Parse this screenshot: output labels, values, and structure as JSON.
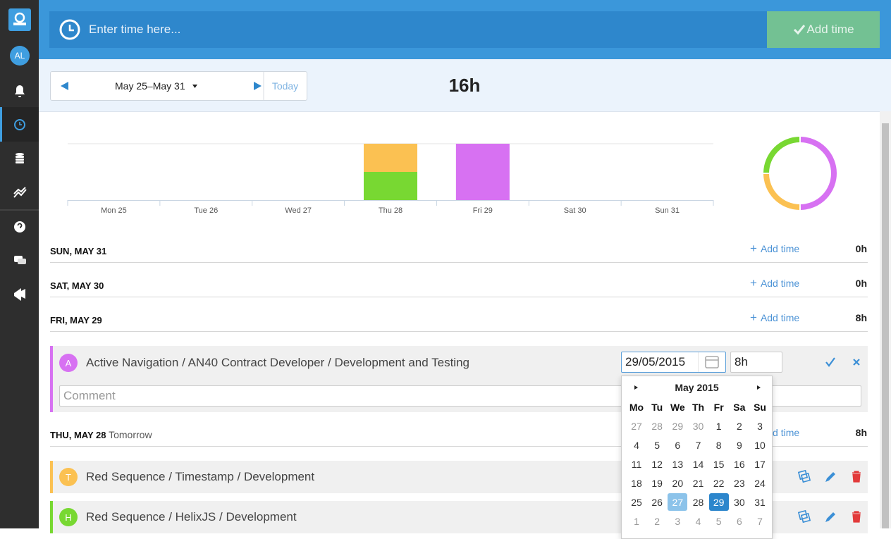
{
  "sidebar": {
    "avatar": "AL"
  },
  "topbar": {
    "placeholder": "Enter time here...",
    "button": "Add time"
  },
  "toolbar": {
    "range": "May 25–May 31",
    "today": "Today",
    "total": "16h"
  },
  "chart": {
    "type": "bar",
    "categories": [
      "Mon 25",
      "Tue 26",
      "Wed 27",
      "Thu 28",
      "Fri 29",
      "Sat 30",
      "Sun 31"
    ],
    "ylim": [
      0,
      8
    ],
    "stacked": true,
    "series": [
      {
        "color": "#78d832",
        "values": [
          0,
          0,
          0,
          4,
          0,
          0,
          0
        ]
      },
      {
        "color": "#fbc152",
        "values": [
          0,
          0,
          0,
          4,
          0,
          0,
          0
        ]
      },
      {
        "color": "#d771f2",
        "values": [
          0,
          0,
          0,
          0,
          8,
          0,
          0
        ]
      }
    ]
  },
  "days": [
    {
      "title": "SUN, MAY 31",
      "add": "Add time",
      "total": "0h"
    },
    {
      "title": "SAT, MAY 30",
      "add": "Add time",
      "total": "0h"
    },
    {
      "title": "FRI, MAY 29",
      "add": "Add time",
      "total": "8h",
      "entries": [
        {
          "avatar": "A",
          "text": "Active Navigation / AN40 Contract Developer / Development and Testing",
          "date": "29/05/2015",
          "hours": "8h",
          "comment": "Comment"
        }
      ]
    },
    {
      "title": "THU, MAY 28",
      "note": "Tomorrow",
      "add": "Add time",
      "total": "8h",
      "entries": [
        {
          "avatar": "T",
          "text": "Red Sequence / Timestamp / Development"
        },
        {
          "avatar": "H",
          "text": "Red Sequence / HelixJS / Development"
        }
      ]
    }
  ],
  "datepicker": {
    "month": "May 2015",
    "weekdays": [
      "Mo",
      "Tu",
      "We",
      "Th",
      "Fr",
      "Sa",
      "Su"
    ],
    "prev_month_days": [
      27,
      28,
      29,
      30
    ],
    "month_days": [
      1,
      2,
      3,
      4,
      5,
      6,
      7,
      8,
      9,
      10,
      11,
      12,
      13,
      14,
      15,
      16,
      17,
      18,
      19,
      20,
      21,
      22,
      23,
      24,
      25,
      26,
      27,
      28,
      29,
      30,
      31
    ],
    "next_month_days": [
      1,
      2,
      3,
      4,
      5,
      6,
      7
    ],
    "hover": 27,
    "selected": 29
  }
}
